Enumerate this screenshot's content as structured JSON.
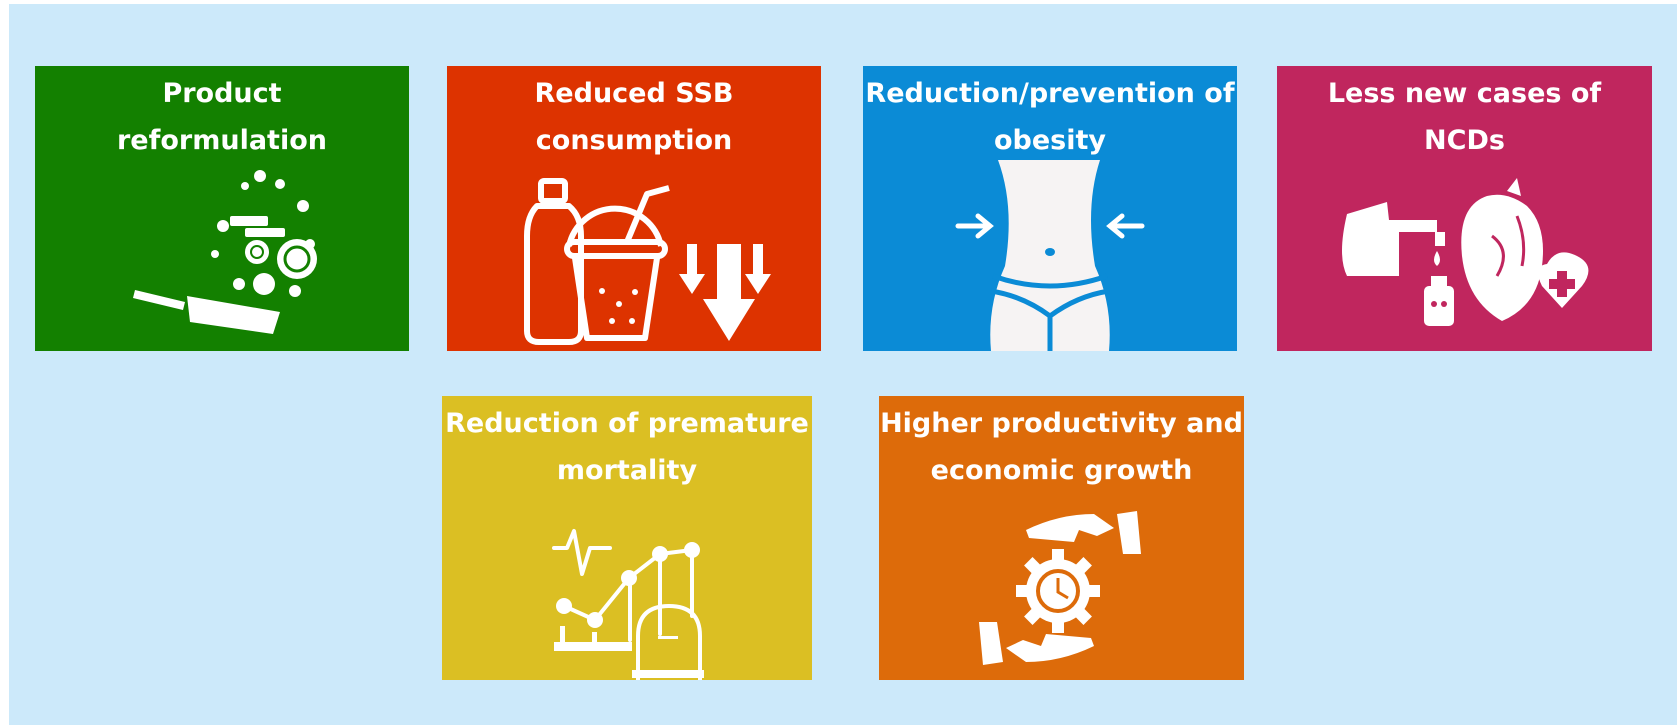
{
  "tiles": [
    {
      "title": [
        "Product",
        "reformulation"
      ]
    },
    {
      "title": [
        "Reduced SSB",
        "consumption"
      ]
    },
    {
      "title": [
        "Reduction/prevention of",
        "obesity"
      ]
    },
    {
      "title": [
        "Less new cases of",
        "NCDs"
      ]
    },
    {
      "title": [
        "Reduction of premature",
        "mortality"
      ]
    },
    {
      "title": [
        "Higher productivity and",
        "economic growth"
      ]
    }
  ]
}
